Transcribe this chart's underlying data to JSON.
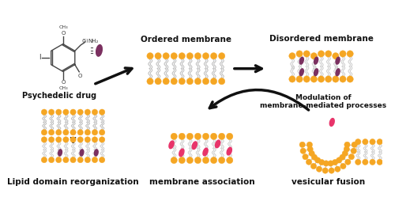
{
  "bg_color": "#ffffff",
  "orange": "#F5A623",
  "pink": "#E8346A",
  "purple": "#7B3060",
  "tail_color": "#BBBBBB",
  "arrow_color": "#111111",
  "text_color": "#111111",
  "labels": {
    "psychedelic": "Psychedelic drug",
    "ordered": "Ordered membrane",
    "disordered": "Disordered membrane",
    "modulation": "Modulation of\nmembrane-mediated processes",
    "lipid_domain": "Lipid domain reorganization",
    "membrane_assoc": "membrane association",
    "vesicular": "vesicular fusion"
  }
}
